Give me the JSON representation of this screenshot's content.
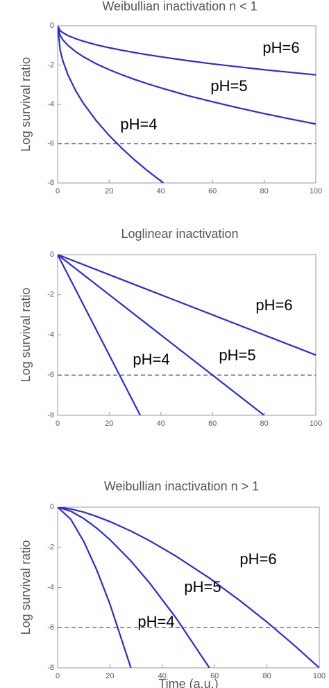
{
  "chart_data": [
    {
      "type": "line",
      "title": "Weibullian inactivation n < 1",
      "y_label": "Log survival ratio",
      "x": [
        0,
        1,
        2,
        4,
        7,
        10,
        15,
        20,
        25,
        30,
        35,
        41,
        50,
        60,
        70,
        80,
        90,
        100
      ],
      "series": [
        {
          "name": "pH=6",
          "color": "#2b2bd9",
          "values": [
            0,
            -0.25,
            -0.35,
            -0.5,
            -0.66,
            -0.79,
            -0.97,
            -1.12,
            -1.25,
            -1.37,
            -1.48,
            -1.6,
            -1.77,
            -1.94,
            -2.09,
            -2.24,
            -2.37,
            -2.5
          ]
        },
        {
          "name": "pH=5",
          "color": "#2b2bd9",
          "values": [
            0,
            -0.5,
            -0.71,
            -1,
            -1.32,
            -1.58,
            -1.94,
            -2.24,
            -2.5,
            -2.74,
            -2.96,
            -3.2,
            -3.54,
            -3.87,
            -4.18,
            -4.47,
            -4.74,
            -5
          ]
        },
        {
          "name": "pH=4",
          "color": "#2b2bd9",
          "values": [
            0,
            -1.25,
            -1.77,
            -2.5,
            -3.31,
            -3.95,
            -4.84,
            -5.59,
            -6.25,
            -6.85,
            -7.4,
            -8,
            null,
            null,
            null,
            null,
            null,
            null
          ]
        }
      ],
      "hline": -6,
      "hline_color": "#4a7cc0",
      "xlim": [
        0,
        100
      ],
      "xticks": [
        0,
        20,
        40,
        60,
        80,
        100
      ],
      "ylim": [
        -8,
        0
      ],
      "yticks": [
        -8,
        -6,
        -4,
        -2,
        0
      ]
    },
    {
      "type": "line",
      "title": "Loglinear inactivation",
      "y_label": "Log survival ratio",
      "x": [
        0,
        32,
        80,
        100
      ],
      "series": [
        {
          "name": "pH=6",
          "color": "#2b2bd9",
          "values": [
            0,
            -1.6,
            -4,
            -5
          ]
        },
        {
          "name": "pH=5",
          "color": "#2b2bd9",
          "values": [
            0,
            -3.2,
            -8,
            null
          ]
        },
        {
          "name": "pH=4",
          "color": "#2b2bd9",
          "values": [
            0,
            -8,
            null,
            null
          ]
        }
      ],
      "hline": -6,
      "hline_color": "#4a7cc0",
      "xlim": [
        0,
        100
      ],
      "xticks": [
        0,
        20,
        40,
        60,
        80,
        100
      ],
      "ylim": [
        -8,
        0
      ],
      "yticks": [
        -8,
        -6,
        -4,
        -2,
        0
      ]
    },
    {
      "type": "line",
      "title": "Weibullian inactivation n > 1",
      "y_label": "Log survival ratio",
      "x_label": "Time (a.u.)",
      "x": [
        0,
        5,
        10,
        15,
        20,
        28,
        35,
        45,
        58,
        70,
        80,
        90,
        100
      ],
      "series": [
        {
          "name": "pH=6",
          "color": "#2b2bd9",
          "values": [
            0,
            -0.09,
            -0.25,
            -0.47,
            -0.72,
            -1.19,
            -1.66,
            -2.42,
            -3.53,
            -4.69,
            -5.72,
            -6.83,
            -8
          ]
        },
        {
          "name": "pH=5",
          "color": "#2b2bd9",
          "values": [
            0,
            -0.2,
            -0.57,
            -1.05,
            -1.62,
            -2.68,
            -3.75,
            -5.47,
            -8,
            null,
            null,
            null,
            null
          ]
        },
        {
          "name": "pH=4",
          "color": "#2b2bd9",
          "values": [
            0,
            -0.6,
            -1.71,
            -3.14,
            -4.83,
            -8,
            null,
            null,
            null,
            null,
            null,
            null,
            null
          ]
        }
      ],
      "hline": -6,
      "hline_color": "#4a7cc0",
      "xlim": [
        0,
        100
      ],
      "xticks": [
        0,
        20,
        40,
        60,
        80,
        100
      ],
      "ylim": [
        -8,
        0
      ],
      "yticks": [
        -8,
        -6,
        -4,
        -2,
        0
      ]
    }
  ]
}
